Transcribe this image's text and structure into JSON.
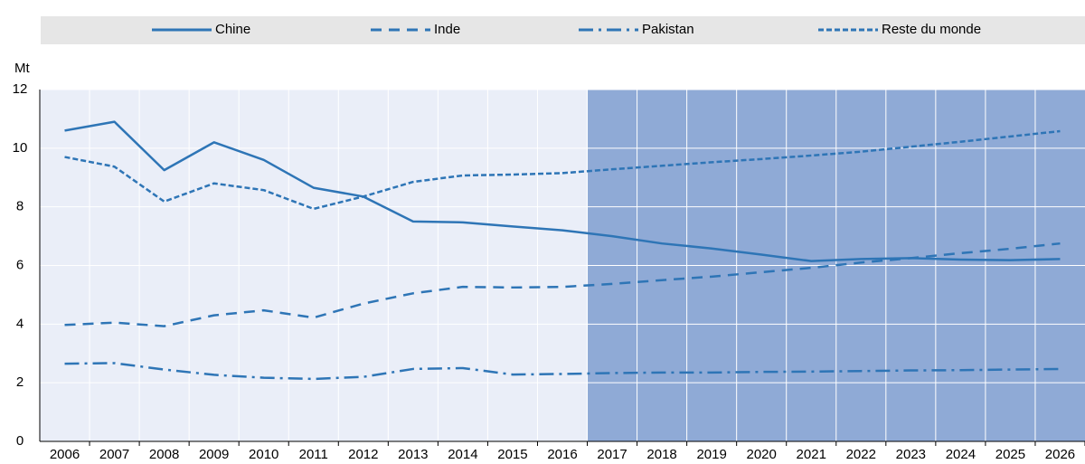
{
  "chart_data": {
    "type": "line",
    "y_axis_label": "Mt",
    "categories": [
      "2006",
      "2007",
      "2008",
      "2009",
      "2010",
      "2011",
      "2012",
      "2013",
      "2014",
      "2015",
      "2016",
      "2017",
      "2018",
      "2019",
      "2020",
      "2021",
      "2022",
      "2023",
      "2024",
      "2025",
      "2026"
    ],
    "series": [
      {
        "name": "Chine",
        "color": "#2e75b6",
        "style": "solid",
        "values": [
          10.6,
          10.9,
          9.25,
          10.2,
          9.6,
          8.65,
          8.35,
          7.5,
          7.47,
          7.33,
          7.2,
          7.0,
          6.75,
          6.58,
          6.37,
          6.15,
          6.22,
          6.25,
          6.2,
          6.18,
          6.22
        ]
      },
      {
        "name": "Inde",
        "color": "#2e75b6",
        "style": "dashed",
        "values": [
          3.97,
          4.05,
          3.93,
          4.3,
          4.47,
          4.22,
          4.7,
          5.05,
          5.27,
          5.25,
          5.27,
          5.37,
          5.5,
          5.62,
          5.77,
          5.92,
          6.1,
          6.25,
          6.42,
          6.57,
          6.75
        ]
      },
      {
        "name": "Pakistan",
        "color": "#2e75b6",
        "style": "dashdot",
        "values": [
          2.65,
          2.67,
          2.45,
          2.27,
          2.17,
          2.13,
          2.2,
          2.47,
          2.5,
          2.28,
          2.3,
          2.33,
          2.35,
          2.35,
          2.37,
          2.38,
          2.4,
          2.42,
          2.43,
          2.45,
          2.47
        ]
      },
      {
        "name": "Reste du monde",
        "color": "#2e75b6",
        "style": "dotted",
        "values": [
          9.7,
          9.37,
          8.18,
          8.8,
          8.57,
          7.93,
          8.35,
          8.85,
          9.07,
          9.1,
          9.15,
          9.28,
          9.4,
          9.52,
          9.63,
          9.75,
          9.88,
          10.05,
          10.22,
          10.4,
          10.58
        ]
      }
    ],
    "ylim": [
      0,
      12
    ],
    "yticks": [
      0,
      2,
      4,
      6,
      8,
      10,
      12
    ],
    "grid": true,
    "shaded_from": "2017",
    "plot_color": "#eaeef8",
    "shaded_color": "#8faad6",
    "legend": "top"
  }
}
